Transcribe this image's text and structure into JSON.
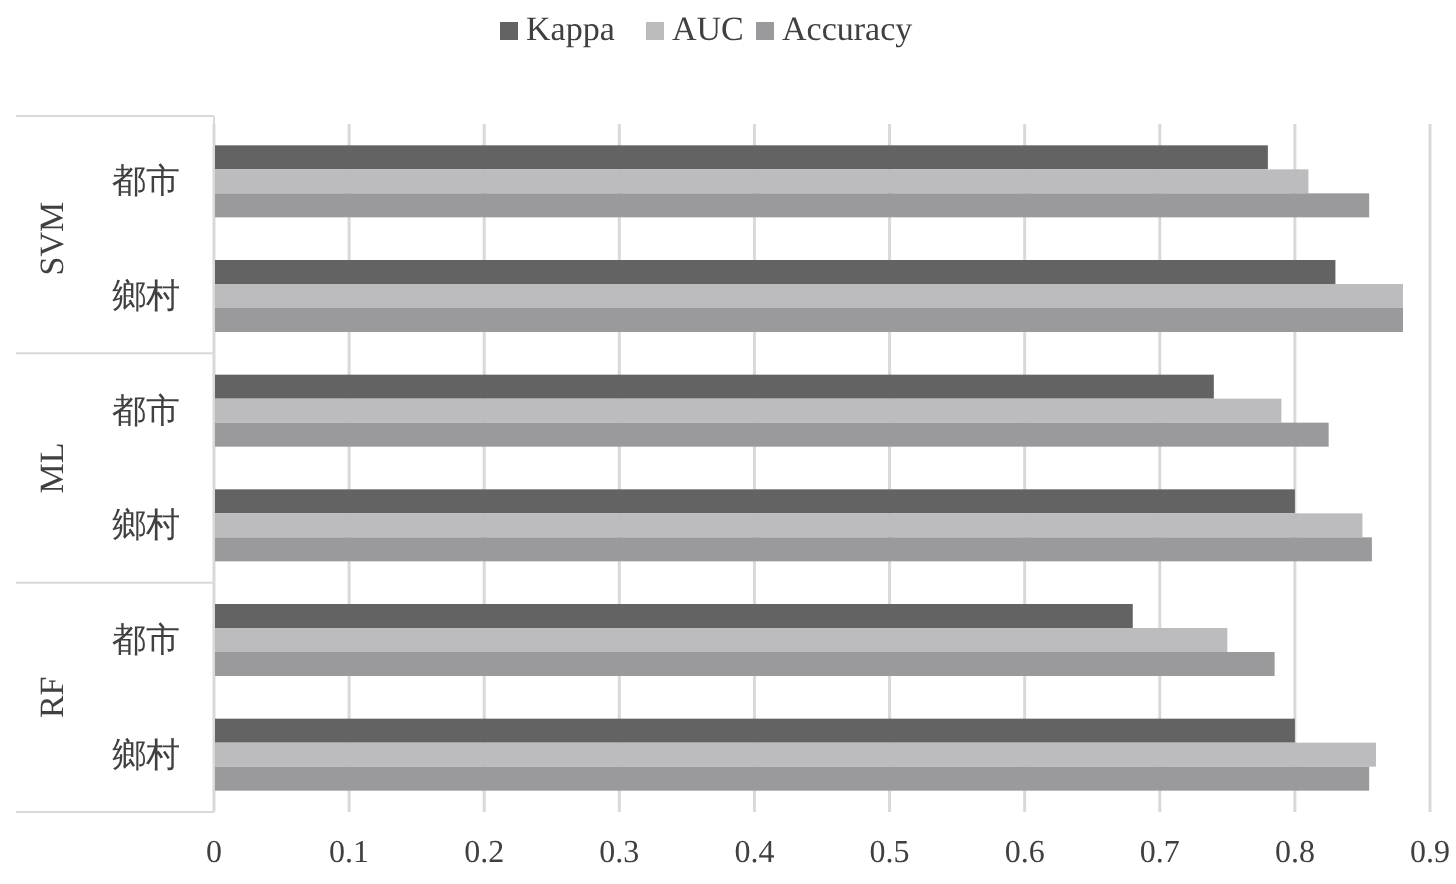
{
  "chart_data": {
    "type": "bar",
    "orientation": "horizontal",
    "categories": [
      "都市",
      "鄉村",
      "都市",
      "鄉村",
      "都市",
      "鄉村"
    ],
    "annotations": [
      "SVM",
      "ML",
      "RF"
    ],
    "series": [
      {
        "name": "Kappa",
        "color": "#636363",
        "values": [
          0.78,
          0.83,
          0.74,
          0.8,
          0.68,
          0.8
        ]
      },
      {
        "name": "AUC",
        "color": "#bcbcbe",
        "values": [
          0.81,
          0.88,
          0.79,
          0.85,
          0.75,
          0.86
        ]
      },
      {
        "name": "Accuracy",
        "color": "#9a9a9c",
        "values": [
          0.855,
          0.88,
          0.825,
          0.857,
          0.785,
          0.855
        ]
      }
    ],
    "xlim": [
      0,
      0.9
    ],
    "xticks": [
      0,
      0.1,
      0.2,
      0.3,
      0.4,
      0.5,
      0.6,
      0.7,
      0.8,
      0.9
    ],
    "grid": "x",
    "legend": "top"
  }
}
